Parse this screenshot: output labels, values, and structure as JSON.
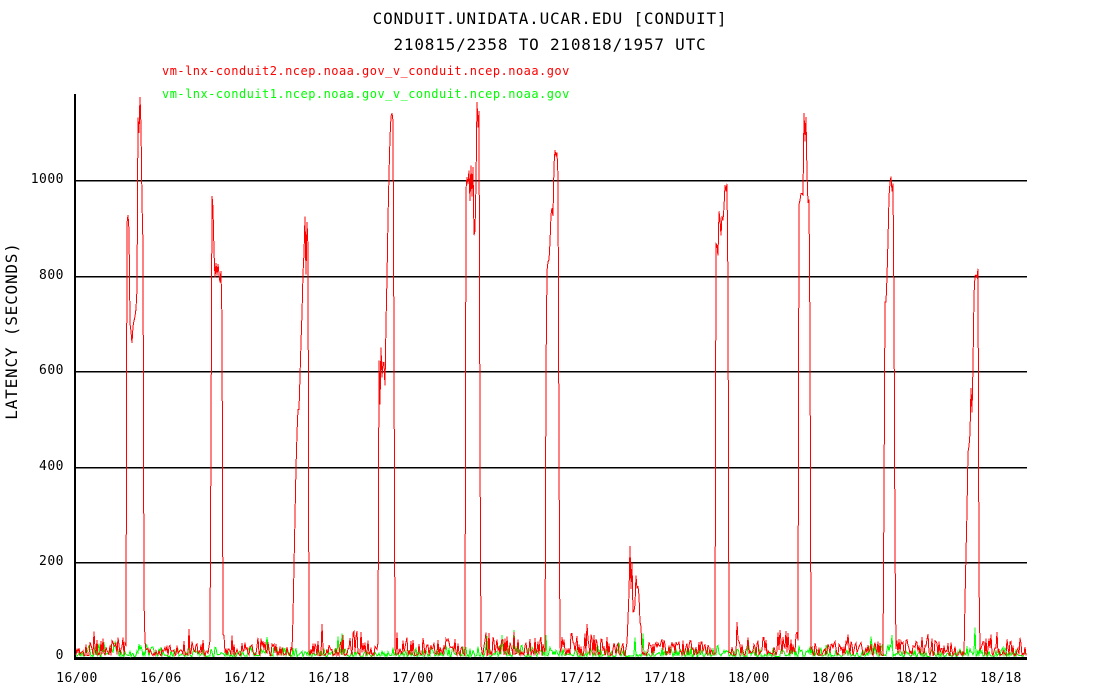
{
  "title": "CONDUIT.UNIDATA.UCAR.EDU [CONDUIT]",
  "subtitle": "210815/2358 TO 210818/1957 UTC",
  "colors": {
    "series_conduit2": "#ff0000",
    "series_conduit1": "#00ff00",
    "axis": "#000000",
    "background": "#ffffff"
  },
  "chart_data": {
    "type": "line",
    "title": "CONDUIT.UNIDATA.UCAR.EDU [CONDUIT]",
    "subtitle": "210815/2358 TO 210818/1957 UTC",
    "xlabel": "",
    "ylabel": "LATENCY (SECONDS)",
    "ylim": [
      0,
      1180
    ],
    "grid": "horizontal",
    "legend_position": "top-left",
    "yticks": [
      0,
      200,
      400,
      600,
      800,
      1000
    ],
    "x_axis": {
      "unit": "day/hour UTC",
      "hours_origin": "16/00",
      "tick_hours": [
        0,
        6,
        12,
        18,
        24,
        30,
        36,
        42,
        48,
        54,
        60,
        66
      ],
      "tick_labels": [
        "16/00",
        "16/06",
        "16/12",
        "16/18",
        "17/00",
        "17/06",
        "17/12",
        "17/18",
        "18/00",
        "18/06",
        "18/12",
        "18/18"
      ]
    },
    "series": [
      {
        "name": "vm-lnx-conduit2.ncep.noaa.gov_v_conduit.ncep.noaa.gov",
        "color": "#ff0000",
        "baseline_noise_seconds": {
          "typical_min": 3,
          "typical_max": 65
        },
        "spike_clusters": [
          [
            [
              3.5,
              25
            ],
            [
              3.55,
              720
            ],
            [
              3.58,
              1000
            ],
            [
              3.63,
              880
            ],
            [
              3.68,
              1015
            ],
            [
              3.74,
              800
            ],
            [
              3.8,
              680
            ],
            [
              3.93,
              660
            ],
            [
              4.02,
              700
            ],
            [
              4.28,
              730
            ],
            [
              4.33,
              1150
            ],
            [
              4.42,
              1080
            ],
            [
              4.5,
              1160
            ],
            [
              4.6,
              1100
            ],
            [
              4.67,
              870
            ],
            [
              4.75,
              850
            ],
            [
              4.79,
              30
            ]
          ],
          [
            [
              9.55,
              25
            ],
            [
              9.58,
              650
            ],
            [
              9.62,
              975
            ],
            [
              9.68,
              920
            ],
            [
              9.73,
              960
            ],
            [
              9.8,
              830
            ],
            [
              9.88,
              770
            ],
            [
              9.95,
              855
            ],
            [
              10.02,
              780
            ],
            [
              10.1,
              845
            ],
            [
              10.18,
              760
            ],
            [
              10.25,
              820
            ],
            [
              10.32,
              800
            ],
            [
              10.38,
              640
            ],
            [
              10.43,
              30
            ]
          ],
          [
            [
              15.38,
              25
            ],
            [
              15.48,
              150
            ],
            [
              15.58,
              320
            ],
            [
              15.68,
              430
            ],
            [
              15.76,
              530
            ],
            [
              15.83,
              470
            ],
            [
              15.93,
              600
            ],
            [
              16.03,
              680
            ],
            [
              16.13,
              780
            ],
            [
              16.23,
              870
            ],
            [
              16.3,
              930
            ],
            [
              16.36,
              800
            ],
            [
              16.43,
              920
            ],
            [
              16.5,
              860
            ],
            [
              16.55,
              30
            ]
          ],
          [
            [
              21.5,
              30
            ],
            [
              21.53,
              480
            ],
            [
              21.58,
              640
            ],
            [
              21.65,
              520
            ],
            [
              21.72,
              660
            ],
            [
              21.8,
              560
            ],
            [
              21.9,
              640
            ],
            [
              22.0,
              580
            ],
            [
              22.1,
              730
            ],
            [
              22.25,
              960
            ],
            [
              22.38,
              1120
            ],
            [
              22.48,
              1160
            ],
            [
              22.55,
              1090
            ],
            [
              22.6,
              1165
            ],
            [
              22.66,
              420
            ],
            [
              22.7,
              35
            ]
          ],
          [
            [
              27.72,
              30
            ],
            [
              27.77,
              940
            ],
            [
              27.83,
              1040
            ],
            [
              27.9,
              950
            ],
            [
              27.97,
              1055
            ],
            [
              28.05,
              930
            ],
            [
              28.12,
              1050
            ],
            [
              28.2,
              955
            ],
            [
              28.28,
              1040
            ],
            [
              28.37,
              870
            ],
            [
              28.47,
              900
            ],
            [
              28.57,
              1170
            ],
            [
              28.65,
              1110
            ],
            [
              28.71,
              1170
            ],
            [
              28.78,
              520
            ],
            [
              28.82,
              35
            ]
          ],
          [
            [
              33.43,
              30
            ],
            [
              33.47,
              420
            ],
            [
              33.53,
              800
            ],
            [
              33.6,
              830
            ],
            [
              33.68,
              805
            ],
            [
              33.76,
              840
            ],
            [
              33.9,
              955
            ],
            [
              34.0,
              930
            ],
            [
              34.1,
              1070
            ],
            [
              34.2,
              1030
            ],
            [
              34.28,
              1060
            ],
            [
              34.36,
              990
            ],
            [
              34.42,
              500
            ],
            [
              34.47,
              35
            ]
          ],
          [
            [
              39.3,
              60
            ],
            [
              39.4,
              95
            ],
            [
              39.5,
              235
            ],
            [
              39.57,
              150
            ],
            [
              39.63,
              228
            ],
            [
              39.72,
              85
            ],
            [
              39.85,
              105
            ],
            [
              39.95,
              182
            ],
            [
              40.03,
              120
            ],
            [
              40.1,
              168
            ],
            [
              40.2,
              75
            ],
            [
              40.35,
              55
            ]
          ],
          [
            [
              45.58,
              35
            ],
            [
              45.62,
              850
            ],
            [
              45.7,
              880
            ],
            [
              45.78,
              830
            ],
            [
              45.88,
              950
            ],
            [
              45.98,
              870
            ],
            [
              46.08,
              940
            ],
            [
              46.18,
              900
            ],
            [
              46.28,
              1000
            ],
            [
              46.38,
              955
            ],
            [
              46.45,
              995
            ],
            [
              46.52,
              680
            ],
            [
              46.57,
              40
            ]
          ],
          [
            [
              51.5,
              35
            ],
            [
              51.54,
              900
            ],
            [
              51.6,
              1000
            ],
            [
              51.68,
              930
            ],
            [
              51.76,
              995
            ],
            [
              51.83,
              900
            ],
            [
              51.93,
              1140
            ],
            [
              52.0,
              1080
            ],
            [
              52.07,
              1140
            ],
            [
              52.17,
              950
            ],
            [
              52.33,
              945
            ],
            [
              52.42,
              40
            ]
          ],
          [
            [
              57.62,
              35
            ],
            [
              57.67,
              700
            ],
            [
              57.74,
              760
            ],
            [
              57.82,
              745
            ],
            [
              57.92,
              850
            ],
            [
              58.02,
              980
            ],
            [
              58.12,
              1005
            ],
            [
              58.22,
              975
            ],
            [
              58.3,
              1000
            ],
            [
              58.38,
              630
            ],
            [
              58.45,
              40
            ]
          ],
          [
            [
              63.38,
              40
            ],
            [
              63.48,
              200
            ],
            [
              63.58,
              330
            ],
            [
              63.68,
              470
            ],
            [
              63.76,
              420
            ],
            [
              63.86,
              560
            ],
            [
              63.94,
              490
            ],
            [
              64.08,
              770
            ],
            [
              64.18,
              820
            ],
            [
              64.28,
              780
            ],
            [
              64.36,
              825
            ],
            [
              64.44,
              40
            ]
          ]
        ]
      },
      {
        "name": "vm-lnx-conduit1.ncep.noaa.gov_v_conduit.ncep.noaa.gov",
        "color": "#00ff00",
        "baseline_noise_seconds": {
          "typical_min": 1,
          "typical_max": 34
        },
        "spike_clusters": []
      }
    ]
  }
}
